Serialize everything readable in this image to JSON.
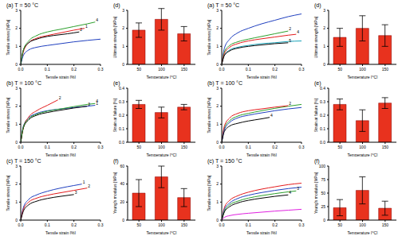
{
  "chart_data": [
    {
      "type": "line",
      "title": "(a) T = 50 °C",
      "x_label": "Tensile strain [%]",
      "y_label": "Tensile stress [MPa]",
      "xlim": [
        0,
        0.3
      ],
      "xticks": [
        {
          "value": 0,
          "label": "0.0"
        },
        0.1,
        0.2,
        0.3
      ],
      "ylim": [
        0,
        3
      ],
      "yticks": [
        0,
        1,
        2,
        3
      ],
      "grid": false,
      "series": [
        {
          "name": "1",
          "color": "#e41a1c",
          "x": [
            0,
            0.01,
            0.03,
            0.06,
            0.1,
            0.15,
            0.2,
            0.24
          ],
          "values": [
            0,
            0.7,
            1.2,
            1.45,
            1.6,
            1.75,
            1.9,
            2.0
          ]
        },
        {
          "name": "2",
          "color": "#000000",
          "x": [
            0,
            0.01,
            0.03,
            0.06,
            0.1,
            0.15,
            0.2,
            0.22
          ],
          "values": [
            0,
            0.8,
            1.2,
            1.4,
            1.55,
            1.65,
            1.75,
            1.8
          ]
        },
        {
          "name": "3",
          "color": "#1f3fbf",
          "x": [
            0,
            0.01,
            0.03,
            0.06,
            0.1,
            0.15,
            0.2,
            0.25,
            0.3
          ],
          "values": [
            0,
            0.5,
            0.8,
            0.95,
            1.05,
            1.15,
            1.25,
            1.33,
            1.4
          ]
        },
        {
          "name": "4",
          "color": "#2ca02c",
          "x": [
            0,
            0.01,
            0.03,
            0.06,
            0.1,
            0.15,
            0.2,
            0.25,
            0.28
          ],
          "values": [
            0,
            0.8,
            1.3,
            1.6,
            1.8,
            1.95,
            2.1,
            2.25,
            2.35
          ]
        }
      ]
    },
    {
      "type": "line",
      "title": "(b) T = 100 °C",
      "x_label": "Tensile strain [%]",
      "y_label": "Tensile stress [MPa]",
      "xlim": [
        0,
        0.3
      ],
      "xticks": [
        {
          "value": 0,
          "label": "0.0"
        },
        0.1,
        0.2,
        0.3
      ],
      "ylim": [
        0,
        3
      ],
      "yticks": [
        0,
        1,
        2,
        3
      ],
      "grid": false,
      "series": [
        {
          "name": "1",
          "color": "#1f3fbf",
          "x": [
            0,
            0.01,
            0.03,
            0.06,
            0.1,
            0.15,
            0.2,
            0.25,
            0.28
          ],
          "values": [
            0,
            0.9,
            1.35,
            1.6,
            1.75,
            1.85,
            1.93,
            2.0,
            2.05
          ]
        },
        {
          "name": "2",
          "color": "#e41a1c",
          "x": [
            0,
            0.01,
            0.03,
            0.06,
            0.1,
            0.14
          ],
          "values": [
            0,
            0.8,
            1.4,
            1.75,
            2.05,
            2.35
          ]
        },
        {
          "name": "3",
          "color": "#000000",
          "x": [
            0,
            0.01,
            0.03,
            0.06,
            0.1,
            0.15,
            0.2,
            0.25
          ],
          "values": [
            0,
            0.8,
            1.25,
            1.5,
            1.65,
            1.78,
            1.9,
            2.0
          ]
        },
        {
          "name": "4",
          "color": "#2ca02c",
          "x": [
            0,
            0.01,
            0.03,
            0.06,
            0.1,
            0.15,
            0.2,
            0.25,
            0.28
          ],
          "values": [
            0,
            0.85,
            1.3,
            1.55,
            1.72,
            1.85,
            1.98,
            2.1,
            2.15
          ]
        }
      ]
    },
    {
      "type": "line",
      "title": "(c) T = 150 °C",
      "x_label": "Tensile strain [%]",
      "y_label": "Tensile stress [MPa]",
      "xlim": [
        0,
        0.3
      ],
      "xticks": [
        {
          "value": 0,
          "label": "0.0"
        },
        0.1,
        0.2,
        0.3
      ],
      "ylim": [
        0,
        3
      ],
      "yticks": [
        0,
        1,
        2,
        3
      ],
      "grid": false,
      "series": [
        {
          "name": "1",
          "color": "#1f3fbf",
          "x": [
            0,
            0.01,
            0.03,
            0.06,
            0.1,
            0.15,
            0.2,
            0.23
          ],
          "values": [
            0,
            0.7,
            1.15,
            1.4,
            1.6,
            1.78,
            1.92,
            2.0
          ]
        },
        {
          "name": "2",
          "color": "#e41a1c",
          "x": [
            0,
            0.01,
            0.03,
            0.06,
            0.1,
            0.15,
            0.2,
            0.25
          ],
          "values": [
            0,
            0.6,
            1.0,
            1.22,
            1.38,
            1.52,
            1.65,
            1.78
          ]
        },
        {
          "name": "3",
          "color": "#000000",
          "x": [
            0,
            0.01,
            0.03,
            0.06,
            0.1,
            0.15,
            0.2
          ],
          "values": [
            0,
            0.5,
            0.85,
            1.05,
            1.2,
            1.32,
            1.42
          ]
        }
      ]
    },
    {
      "type": "bar",
      "title": "(d)",
      "x_label": "Temperature [°C]",
      "y_label": "Ultimate strength [MPa]",
      "categories": [
        "50",
        "100",
        "150"
      ],
      "values": [
        1.9,
        2.5,
        1.7
      ],
      "errors": [
        0.4,
        0.6,
        0.4
      ],
      "color": "#e8321e",
      "ylim": [
        0,
        3
      ],
      "yticks": [
        0,
        1,
        2,
        3
      ],
      "grid": false
    },
    {
      "type": "bar",
      "title": "(e)",
      "x_label": "Temperature [°C]",
      "y_label": "Strain at failure [%]",
      "categories": [
        "50",
        "100",
        "150"
      ],
      "values": [
        0.28,
        0.22,
        0.26
      ],
      "errors": [
        0.03,
        0.04,
        0.02
      ],
      "color": "#e8321e",
      "ylim": [
        0,
        0.4
      ],
      "yticks": [
        {
          "value": 0,
          "label": "0.0"
        },
        0.1,
        0.2,
        0.3,
        0.4
      ],
      "grid": false
    },
    {
      "type": "bar",
      "title": "(f)",
      "x_label": "Temperature [°C]",
      "y_label": "Young's modulus [MPa]",
      "categories": [
        "50",
        "100",
        "150"
      ],
      "values": [
        30,
        48,
        25
      ],
      "errors": [
        15,
        12,
        10
      ],
      "color": "#e8321e",
      "ylim": [
        0,
        60
      ],
      "yticks": [
        0,
        20,
        40,
        60
      ],
      "grid": false
    },
    {
      "type": "line",
      "title": "(a) T = 50 °C",
      "x_label": "Tensile strain [%]",
      "y_label": "Tensile stress [MPa]",
      "xlim": [
        0,
        0.3
      ],
      "xticks": [
        {
          "value": 0,
          "label": "0.0"
        },
        0.1,
        0.2,
        0.3
      ],
      "ylim": [
        0,
        3
      ],
      "yticks": [
        0,
        1,
        2,
        3
      ],
      "grid": false,
      "series": [
        {
          "name": "1",
          "color": "#1f3fbf",
          "x": [
            0,
            0.01,
            0.03,
            0.06,
            0.1,
            0.15,
            0.2,
            0.25,
            0.3
          ],
          "values": [
            0,
            0.9,
            1.4,
            1.75,
            2.0,
            2.25,
            2.45,
            2.65,
            2.8
          ]
        },
        {
          "name": "2",
          "color": "#2ca02c",
          "x": [
            0,
            0.01,
            0.03,
            0.06,
            0.1,
            0.15,
            0.2,
            0.25
          ],
          "values": [
            0,
            0.7,
            1.05,
            1.25,
            1.4,
            1.55,
            1.7,
            1.85
          ]
        },
        {
          "name": "3",
          "color": "#17a2b8",
          "x": [
            0,
            0.01,
            0.03,
            0.06,
            0.1,
            0.15,
            0.2,
            0.25,
            0.3
          ],
          "values": [
            0,
            0.5,
            0.8,
            0.95,
            1.05,
            1.15,
            1.2,
            1.27,
            1.3
          ]
        },
        {
          "name": "4",
          "color": "#e41a1c",
          "x": [
            0,
            0.01,
            0.03,
            0.06,
            0.1,
            0.15,
            0.2,
            0.25,
            0.28
          ],
          "values": [
            0,
            0.6,
            0.95,
            1.15,
            1.3,
            1.42,
            1.52,
            1.62,
            1.67
          ]
        },
        {
          "name": "5",
          "color": "#000000",
          "x": [
            0,
            0.01,
            0.03,
            0.06,
            0.1,
            0.15,
            0.2,
            0.25
          ],
          "values": [
            0,
            0.5,
            0.75,
            0.9,
            1.0,
            1.08,
            1.15,
            1.2
          ]
        }
      ]
    },
    {
      "type": "line",
      "title": "(b) T = 100 °C",
      "x_label": "Tensile strain [%]",
      "y_label": "Tensile stress [MPa]",
      "xlim": [
        0,
        0.3
      ],
      "xticks": [
        {
          "value": 0,
          "label": "0.0"
        },
        0.1,
        0.2,
        0.3
      ],
      "ylim": [
        0,
        3
      ],
      "yticks": [
        0,
        1,
        2,
        3
      ],
      "grid": false,
      "series": [
        {
          "name": "1",
          "color": "#2ca02c",
          "x": [
            0,
            0.01,
            0.03,
            0.06,
            0.1,
            0.15,
            0.2,
            0.25,
            0.3
          ],
          "values": [
            0,
            0.8,
            1.2,
            1.45,
            1.6,
            1.75,
            1.88,
            2.0,
            2.1
          ]
        },
        {
          "name": "2",
          "color": "#e41a1c",
          "x": [
            0,
            0.01,
            0.03,
            0.06,
            0.1,
            0.15,
            0.2,
            0.25
          ],
          "values": [
            0,
            0.9,
            1.35,
            1.6,
            1.75,
            1.85,
            1.95,
            2.03
          ]
        },
        {
          "name": "3",
          "color": "#1f3fbf",
          "x": [
            0,
            0.01,
            0.03,
            0.06,
            0.1,
            0.15,
            0.2,
            0.25,
            0.3
          ],
          "values": [
            0,
            0.7,
            1.1,
            1.35,
            1.5,
            1.63,
            1.75,
            1.85,
            1.93
          ]
        },
        {
          "name": "4",
          "color": "#000000",
          "x": [
            0,
            0.01,
            0.03,
            0.06,
            0.1,
            0.15,
            0.18
          ],
          "values": [
            0,
            0.6,
            0.9,
            1.05,
            1.18,
            1.3,
            1.38
          ]
        }
      ]
    },
    {
      "type": "line",
      "title": "(c) T = 150 °C",
      "x_label": "Tensile strain [%]",
      "y_label": "Tensile stress [MPa]",
      "xlim": [
        0,
        0.3
      ],
      "xticks": [
        {
          "value": 0,
          "label": "0.0"
        },
        0.1,
        0.2,
        0.3
      ],
      "ylim": [
        0,
        3
      ],
      "yticks": [
        0,
        1,
        2,
        3
      ],
      "grid": false,
      "series": [
        {
          "name": "1",
          "color": "#e41a1c",
          "x": [
            0,
            0.01,
            0.03,
            0.06,
            0.1,
            0.15,
            0.2,
            0.25,
            0.3
          ],
          "values": [
            0,
            0.7,
            1.1,
            1.35,
            1.55,
            1.72,
            1.85,
            1.97,
            2.05
          ]
        },
        {
          "name": "2",
          "color": "#1f3fbf",
          "x": [
            0,
            0.01,
            0.03,
            0.06,
            0.1,
            0.15,
            0.2,
            0.25,
            0.3
          ],
          "values": [
            0,
            0.6,
            0.95,
            1.2,
            1.38,
            1.53,
            1.65,
            1.75,
            1.83
          ]
        },
        {
          "name": "3",
          "color": "#2ca02c",
          "x": [
            0,
            0.01,
            0.03,
            0.06,
            0.1,
            0.15,
            0.2,
            0.25,
            0.28
          ],
          "values": [
            0,
            0.5,
            0.85,
            1.05,
            1.22,
            1.36,
            1.47,
            1.57,
            1.62
          ]
        },
        {
          "name": "4",
          "color": "#000000",
          "x": [
            0,
            0.01,
            0.03,
            0.06,
            0.1,
            0.15,
            0.2,
            0.25
          ],
          "values": [
            0,
            0.45,
            0.75,
            0.95,
            1.1,
            1.22,
            1.32,
            1.4
          ]
        },
        {
          "name": "5",
          "color": "#e020e0",
          "x": [
            0,
            0.01,
            0.03,
            0.06,
            0.1,
            0.15,
            0.2,
            0.25,
            0.3
          ],
          "values": [
            0,
            0.15,
            0.25,
            0.32,
            0.38,
            0.44,
            0.5,
            0.55,
            0.6
          ]
        }
      ]
    },
    {
      "type": "bar",
      "title": "(d)",
      "x_label": "Temperature [°C]",
      "y_label": "Ultimate strength [MPa]",
      "categories": [
        "50",
        "100",
        "150"
      ],
      "values": [
        1.5,
        2.0,
        1.6
      ],
      "errors": [
        0.5,
        0.7,
        0.6
      ],
      "color": "#e8321e",
      "ylim": [
        0,
        3
      ],
      "yticks": [
        0,
        1,
        2,
        3
      ],
      "grid": false
    },
    {
      "type": "bar",
      "title": "(e)",
      "x_label": "Temperature [°C]",
      "y_label": "Strain at failure [%]",
      "categories": [
        "50",
        "100",
        "150"
      ],
      "values": [
        0.28,
        0.16,
        0.29
      ],
      "errors": [
        0.04,
        0.08,
        0.04
      ],
      "color": "#e8321e",
      "ylim": [
        0,
        0.4
      ],
      "yticks": [
        {
          "value": 0,
          "label": "0.0"
        },
        0.1,
        0.2,
        0.3,
        0.4
      ],
      "grid": false
    },
    {
      "type": "bar",
      "title": "(f)",
      "x_label": "Temperature [°C]",
      "y_label": "Young's modulus [MPa]",
      "categories": [
        "50",
        "100",
        "150"
      ],
      "values": [
        23,
        55,
        22
      ],
      "errors": [
        15,
        25,
        13
      ],
      "color": "#e8321e",
      "ylim": [
        0,
        100
      ],
      "yticks": [
        0,
        25,
        50,
        75,
        100
      ],
      "grid": false
    }
  ]
}
